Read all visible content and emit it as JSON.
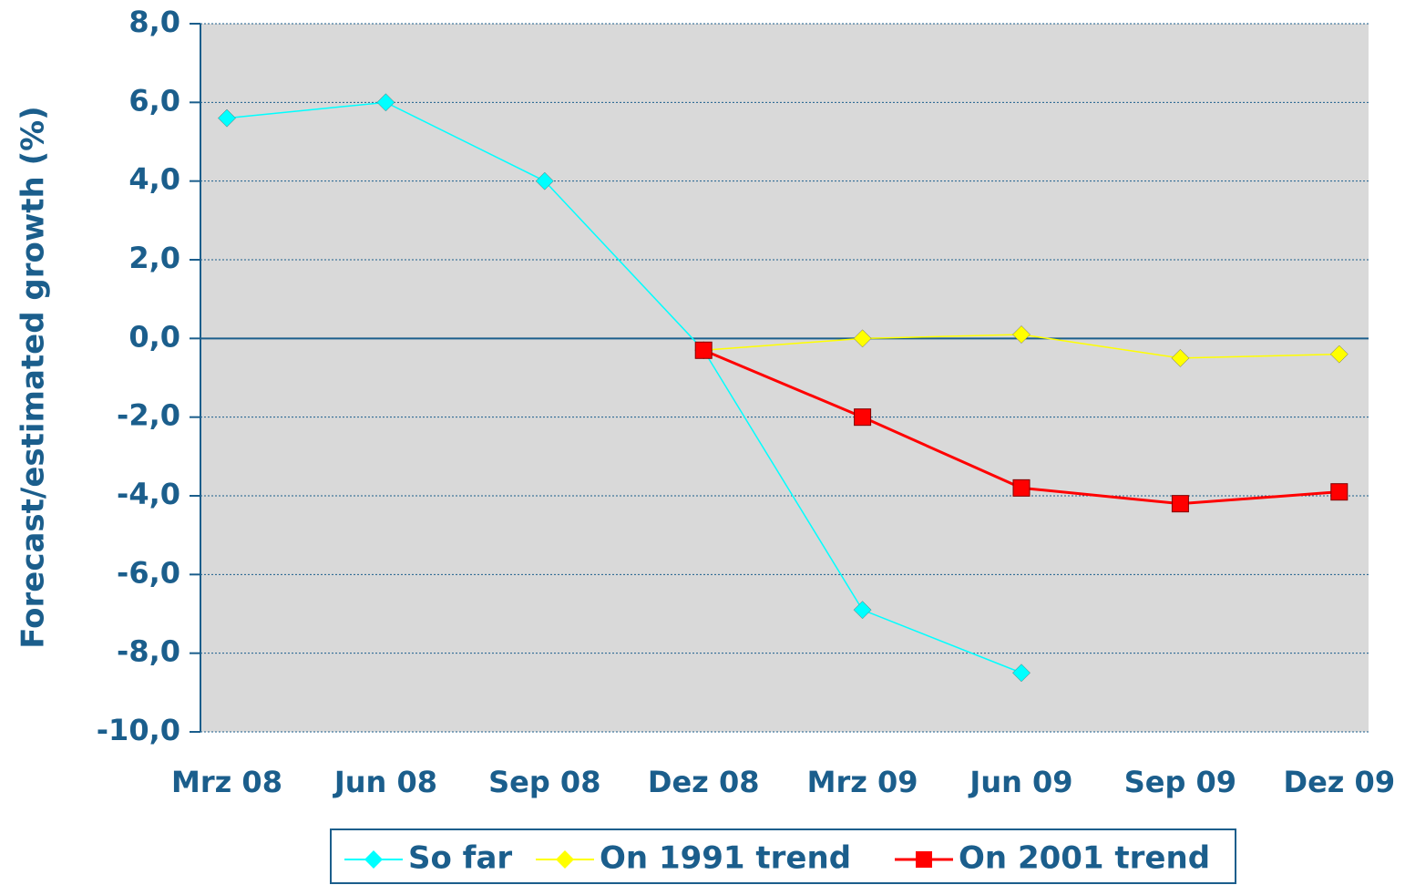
{
  "chart_data": {
    "type": "line",
    "y_label": "Forecast/estimated growth (%)",
    "categories": [
      "Mrz 08",
      "Jun 08",
      "Sep 08",
      "Dez 08",
      "Mrz 09",
      "Jun 09",
      "Sep 09",
      "Dez 09"
    ],
    "series": [
      {
        "name": "So far",
        "color": "#00ffff",
        "marker": "diamond",
        "values": [
          5.6,
          6.0,
          4.0,
          -0.3,
          -6.9,
          -8.5,
          null,
          null
        ]
      },
      {
        "name": "On 1991 trend",
        "color": "#ffff00",
        "marker": "diamond",
        "values": [
          null,
          null,
          null,
          -0.3,
          0.0,
          0.1,
          -0.5,
          -0.4
        ]
      },
      {
        "name": "On 2001 trend",
        "color": "#ff0000",
        "marker": "square",
        "values": [
          null,
          null,
          null,
          -0.3,
          -2.0,
          -3.8,
          -4.2,
          -3.9
        ]
      }
    ],
    "ylim": [
      -10,
      8
    ],
    "yticks": [
      {
        "value": -10,
        "label": "-10,0"
      },
      {
        "value": -8,
        "label": "-8,0"
      },
      {
        "value": -6,
        "label": "-6,0"
      },
      {
        "value": -4,
        "label": "-4,0"
      },
      {
        "value": -2,
        "label": "-2,0"
      },
      {
        "value": 0,
        "label": "0,0"
      },
      {
        "value": 2,
        "label": "2,0"
      },
      {
        "value": 4,
        "label": "4,0"
      },
      {
        "value": 6,
        "label": "6,0"
      },
      {
        "value": 8,
        "label": "8,0"
      }
    ],
    "grid": true,
    "legend": "bottom"
  }
}
